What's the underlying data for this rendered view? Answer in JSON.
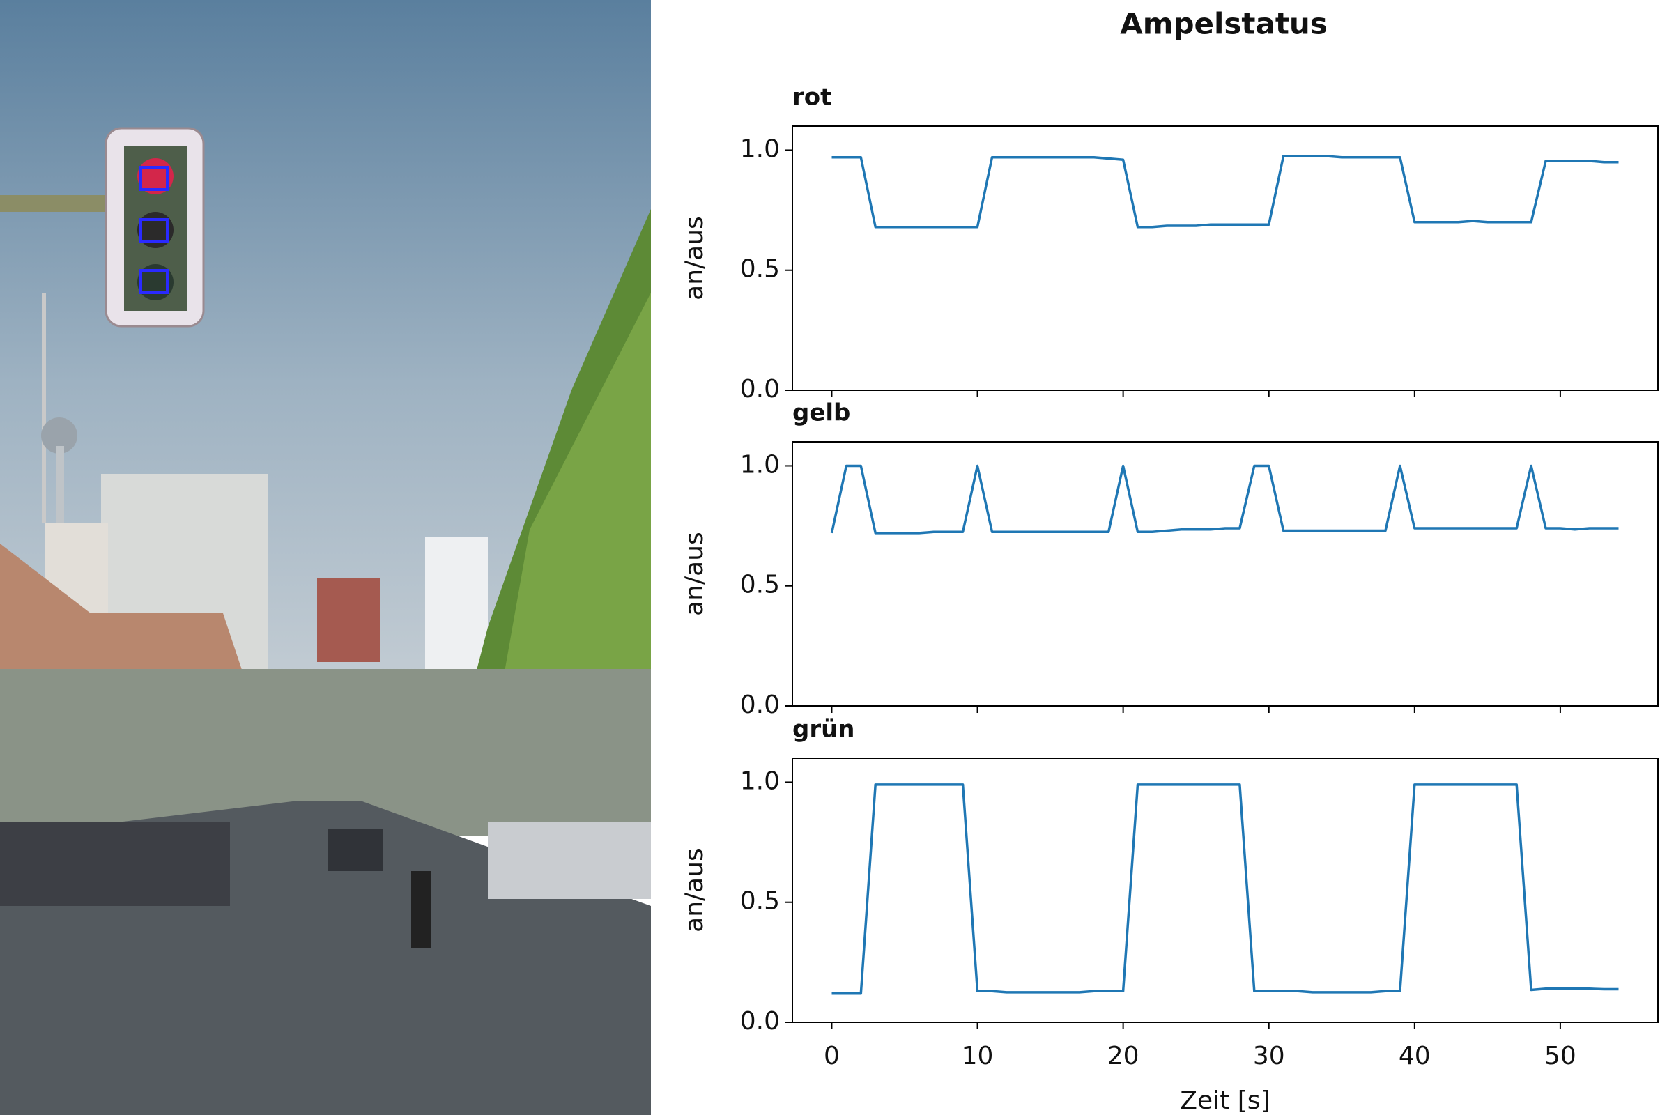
{
  "title": "Ampelstatus",
  "chart_data": [
    {
      "type": "line",
      "title": "rot",
      "ylabel": "an/aus",
      "x": [
        0,
        1,
        2,
        3,
        4,
        5,
        6,
        7,
        8,
        9,
        10,
        11,
        12,
        13,
        14,
        15,
        16,
        17,
        18,
        19,
        20,
        21,
        22,
        23,
        24,
        25,
        26,
        27,
        28,
        29,
        30,
        31,
        32,
        33,
        34,
        35,
        36,
        37,
        38,
        39,
        40,
        41,
        42,
        43,
        44,
        45,
        46,
        47,
        48,
        49,
        50,
        51,
        52,
        53,
        54
      ],
      "values": [
        0.97,
        0.97,
        0.97,
        0.68,
        0.68,
        0.68,
        0.68,
        0.68,
        0.68,
        0.68,
        0.68,
        0.97,
        0.97,
        0.97,
        0.97,
        0.97,
        0.97,
        0.97,
        0.97,
        0.965,
        0.96,
        0.68,
        0.68,
        0.685,
        0.685,
        0.685,
        0.69,
        0.69,
        0.69,
        0.69,
        0.69,
        0.975,
        0.975,
        0.975,
        0.975,
        0.97,
        0.97,
        0.97,
        0.97,
        0.97,
        0.7,
        0.7,
        0.7,
        0.7,
        0.705,
        0.7,
        0.7,
        0.7,
        0.7,
        0.955,
        0.955,
        0.955,
        0.955,
        0.95,
        0.95
      ],
      "color": "#1f77b4",
      "xlim": [
        -2.7,
        56.7
      ],
      "xticks": [
        0,
        10,
        20,
        30,
        40,
        50
      ],
      "ylim": [
        0,
        1.1
      ],
      "yticks": [
        {
          "value": 0,
          "label": "0.0"
        },
        {
          "value": 0.5,
          "label": "0.5"
        },
        {
          "value": 1,
          "label": "1.0"
        }
      ]
    },
    {
      "type": "line",
      "title": "gelb",
      "ylabel": "an/aus",
      "x": [
        0,
        1,
        2,
        3,
        4,
        5,
        6,
        7,
        8,
        9,
        10,
        11,
        12,
        13,
        14,
        15,
        16,
        17,
        18,
        19,
        20,
        21,
        22,
        23,
        24,
        25,
        26,
        27,
        28,
        29,
        30,
        31,
        32,
        33,
        34,
        35,
        36,
        37,
        38,
        39,
        40,
        41,
        42,
        43,
        44,
        45,
        46,
        47,
        48,
        49,
        50,
        51,
        52,
        53,
        54
      ],
      "values": [
        0.72,
        1.0,
        1.0,
        0.72,
        0.72,
        0.72,
        0.72,
        0.725,
        0.725,
        0.725,
        1.0,
        0.725,
        0.725,
        0.725,
        0.725,
        0.725,
        0.725,
        0.725,
        0.725,
        0.725,
        1.0,
        0.725,
        0.725,
        0.73,
        0.735,
        0.735,
        0.735,
        0.74,
        0.74,
        1.0,
        1.0,
        0.73,
        0.73,
        0.73,
        0.73,
        0.73,
        0.73,
        0.73,
        0.73,
        1.0,
        0.74,
        0.74,
        0.74,
        0.74,
        0.74,
        0.74,
        0.74,
        0.74,
        1.0,
        0.74,
        0.74,
        0.735,
        0.74,
        0.74,
        0.74
      ],
      "color": "#1f77b4",
      "xlim": [
        -2.7,
        56.7
      ],
      "xticks": [
        0,
        10,
        20,
        30,
        40,
        50
      ],
      "ylim": [
        0,
        1.1
      ],
      "yticks": [
        {
          "value": 0,
          "label": "0.0"
        },
        {
          "value": 0.5,
          "label": "0.5"
        },
        {
          "value": 1,
          "label": "1.0"
        }
      ]
    },
    {
      "type": "line",
      "title": "grün",
      "ylabel": "an/aus",
      "xlabel": "Zeit [s]",
      "x": [
        0,
        1,
        2,
        3,
        4,
        5,
        6,
        7,
        8,
        9,
        10,
        11,
        12,
        13,
        14,
        15,
        16,
        17,
        18,
        19,
        20,
        21,
        22,
        23,
        24,
        25,
        26,
        27,
        28,
        29,
        30,
        31,
        32,
        33,
        34,
        35,
        36,
        37,
        38,
        39,
        40,
        41,
        42,
        43,
        44,
        45,
        46,
        47,
        48,
        49,
        50,
        51,
        52,
        53,
        54
      ],
      "values": [
        0.12,
        0.12,
        0.12,
        0.99,
        0.99,
        0.99,
        0.99,
        0.99,
        0.99,
        0.99,
        0.13,
        0.13,
        0.125,
        0.125,
        0.125,
        0.125,
        0.125,
        0.125,
        0.13,
        0.13,
        0.13,
        0.99,
        0.99,
        0.99,
        0.99,
        0.99,
        0.99,
        0.99,
        0.99,
        0.13,
        0.13,
        0.13,
        0.13,
        0.125,
        0.125,
        0.125,
        0.125,
        0.125,
        0.13,
        0.13,
        0.99,
        0.99,
        0.99,
        0.99,
        0.99,
        0.99,
        0.99,
        0.99,
        0.135,
        0.14,
        0.14,
        0.14,
        0.14,
        0.138,
        0.138
      ],
      "color": "#1f77b4",
      "xlim": [
        -2.7,
        56.7
      ],
      "xticks": [
        0,
        10,
        20,
        30,
        40,
        50
      ],
      "ylim": [
        0,
        1.1
      ],
      "yticks": [
        {
          "value": 0,
          "label": "0.0"
        },
        {
          "value": 0.5,
          "label": "0.5"
        },
        {
          "value": 1,
          "label": "1.0"
        }
      ]
    }
  ]
}
